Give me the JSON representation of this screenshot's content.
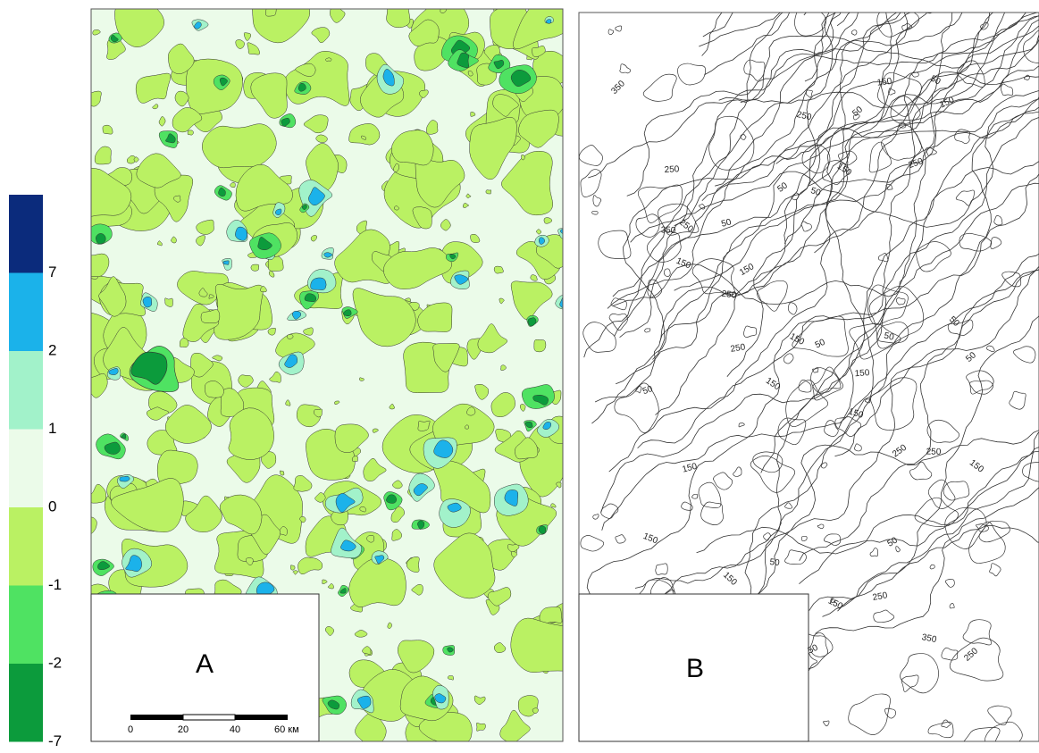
{
  "legend": {
    "breaks": [
      7,
      2,
      1,
      0,
      -1,
      -2,
      -7
    ],
    "colors": [
      "#0b2b7c",
      "#1bb2ea",
      "#a2f2ca",
      "#ebfbe9",
      "#baf163",
      "#4fe262",
      "#0c9b3c"
    ]
  },
  "panels": [
    {
      "label": "A",
      "scale_labels": [
        "0",
        "20",
        "40",
        "60 км"
      ]
    },
    {
      "label": "B",
      "contour_labels": [
        "350",
        "150",
        "50",
        "150",
        "250",
        "50",
        "250",
        "150",
        "250",
        "50",
        "50",
        "350",
        "250",
        "50",
        "150",
        "150",
        "250",
        "50",
        "250",
        "150",
        "50",
        "50",
        "50",
        "150",
        "150",
        "50",
        "150",
        "250",
        "250",
        "150",
        "150",
        "150",
        "50",
        "50",
        "150",
        "250",
        "150",
        "50",
        "350",
        "250"
      ]
    }
  ]
}
